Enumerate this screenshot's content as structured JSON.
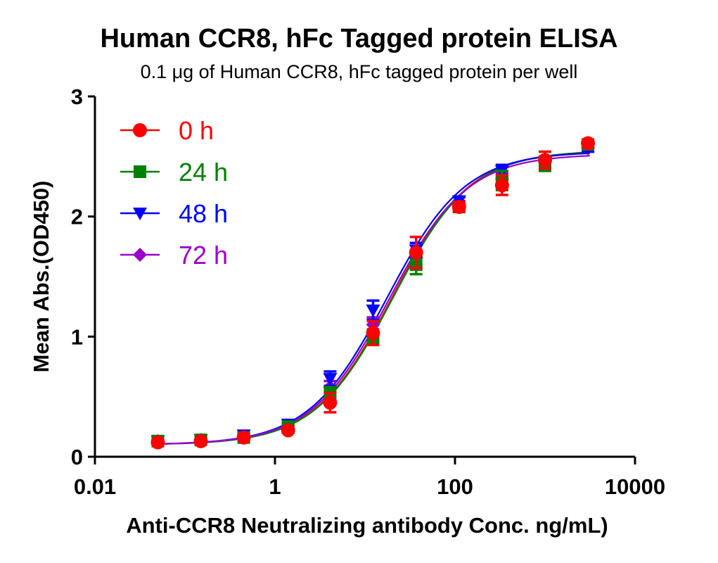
{
  "chart_data": {
    "type": "scatter",
    "title": "Human CCR8, hFc Tagged protein ELISA",
    "subtitle": "0.1 μg of Human CCR8, hFc tagged protein per well",
    "xlabel": "Anti-CCR8 Neutralizing antibody Conc. ng/mL)",
    "ylabel": "Mean Abs.(OD450)",
    "xscale": "log",
    "xlim": [
      0.01,
      10000
    ],
    "ylim": [
      0,
      3
    ],
    "xticks": [
      {
        "value": 0.01,
        "label": "0.01"
      },
      {
        "value": 1,
        "label": "1"
      },
      {
        "value": 100,
        "label": "100"
      },
      {
        "value": 10000,
        "label": "10000"
      }
    ],
    "yticks": [
      {
        "value": 0,
        "label": "0"
      },
      {
        "value": 1,
        "label": "1"
      },
      {
        "value": 2,
        "label": "2"
      },
      {
        "value": 3,
        "label": "3"
      }
    ],
    "legend_position": "top-left",
    "x": [
      0.05,
      0.15,
      0.45,
      1.4,
      4.1,
      12.3,
      37,
      111,
      333,
      1000,
      3000
    ],
    "series": [
      {
        "name": "0 h",
        "color": "#ff0000",
        "marker": "circle",
        "values": [
          0.12,
          0.13,
          0.16,
          0.22,
          0.45,
          1.03,
          1.7,
          2.08,
          2.26,
          2.47,
          2.61
        ],
        "errors": [
          0.02,
          0.02,
          0.02,
          0.02,
          0.08,
          0.1,
          0.13,
          0.04,
          0.08,
          0.07,
          0.03
        ],
        "fit": {
          "bottom": 0.1,
          "top": 2.55,
          "ec50": 20,
          "hill": 1.0
        }
      },
      {
        "name": "24 h",
        "color": "#008000",
        "marker": "square",
        "values": [
          0.13,
          0.14,
          0.16,
          0.25,
          0.52,
          1.0,
          1.6,
          2.08,
          2.3,
          2.44,
          2.6
        ],
        "errors": [
          0.02,
          0.02,
          0.02,
          0.02,
          0.06,
          0.06,
          0.08,
          0.03,
          0.08,
          0.06,
          0.03
        ],
        "fit": {
          "bottom": 0.1,
          "top": 2.55,
          "ec50": 20.5,
          "hill": 1.0
        }
      },
      {
        "name": "48 h",
        "color": "#0000ff",
        "marker": "triangle-down",
        "values": [
          0.13,
          0.14,
          0.18,
          0.27,
          0.65,
          1.22,
          1.72,
          2.13,
          2.38,
          2.45,
          2.57
        ],
        "errors": [
          0.02,
          0.02,
          0.02,
          0.02,
          0.06,
          0.08,
          0.06,
          0.03,
          0.05,
          0.05,
          0.03
        ],
        "fit": {
          "bottom": 0.1,
          "top": 2.54,
          "ec50": 17.5,
          "hill": 1.0
        }
      },
      {
        "name": "72 h",
        "color": "#9900cc",
        "marker": "diamond",
        "values": [
          0.13,
          0.14,
          0.17,
          0.26,
          0.58,
          1.1,
          1.66,
          2.1,
          2.31,
          2.45,
          2.57
        ],
        "errors": [
          0.02,
          0.02,
          0.02,
          0.02,
          0.05,
          0.06,
          0.06,
          0.03,
          0.05,
          0.05,
          0.03
        ],
        "fit": {
          "bottom": 0.1,
          "top": 2.52,
          "ec50": 18.5,
          "hill": 1.0
        }
      }
    ]
  }
}
